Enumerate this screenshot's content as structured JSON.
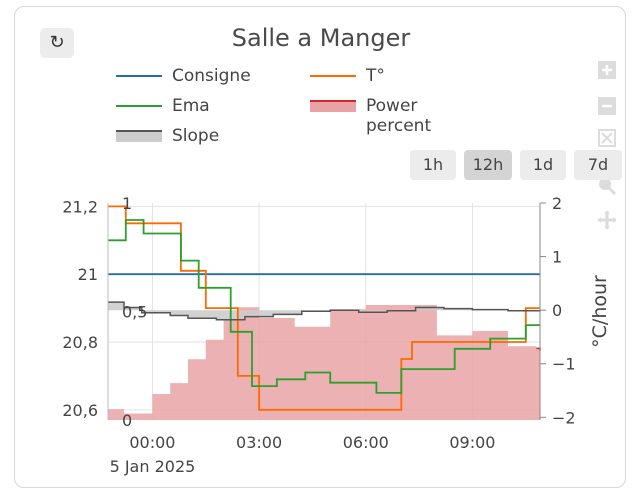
{
  "card": {
    "title": "Salle a Manger",
    "refresh_icon": "refresh-icon",
    "refresh_glyph": "↻"
  },
  "legend": {
    "consigne": "Consigne",
    "t": "T°",
    "ema": "Ema",
    "power": "Power percent",
    "slope": "Slope"
  },
  "range_buttons": [
    "1h",
    "12h",
    "1d",
    "7d"
  ],
  "active_range": "12h",
  "modebar_icons": [
    "zoom-in-icon",
    "zoom-out-icon",
    "autoscale-icon",
    "zoom-icon",
    "pan-icon"
  ],
  "colors": {
    "consigne": "#1f6fa8",
    "t": "#ff6a00",
    "ema": "#2ca02c",
    "power": "#e8a3a6",
    "power_line": "#d62728",
    "slope": "#555555",
    "slope_fill": "#cccccc"
  },
  "chart_data": {
    "type": "line",
    "x_tick_labels": [
      "00:00",
      "03:00",
      "06:00",
      "09:00"
    ],
    "x_date_label": "5 Jan 2025",
    "xlim_hours": [
      -1.25,
      10.9
    ],
    "y_left": {
      "ticks": [
        "21,2",
        "21",
        "20,8",
        "20,6"
      ],
      "ylim": [
        20.57,
        21.21
      ]
    },
    "y_power": {
      "ticks": [
        "1",
        "0,5",
        "0"
      ],
      "ylim": [
        0,
        1
      ]
    },
    "y_right": {
      "label": "°C/hour",
      "ticks": [
        "2",
        "1",
        "0",
        "−1",
        "−2"
      ],
      "ylim": [
        -2.05,
        2.0
      ]
    },
    "series": [
      {
        "name": "Consigne",
        "axis": "left",
        "shape": "step",
        "x": [
          -1.25,
          10.9
        ],
        "y": [
          21.0,
          21.0
        ]
      },
      {
        "name": "T°",
        "axis": "left",
        "shape": "step",
        "x": [
          -1.25,
          -0.75,
          0.8,
          1.5,
          2.4,
          3.0,
          5.5,
          7.0,
          7.3,
          10.5,
          10.9
        ],
        "y": [
          21.2,
          21.15,
          21.01,
          20.9,
          20.7,
          20.6,
          20.6,
          20.75,
          20.8,
          20.9,
          20.9
        ]
      },
      {
        "name": "Ema",
        "axis": "left",
        "shape": "step",
        "x": [
          -1.25,
          -0.75,
          -0.25,
          0.8,
          1.3,
          2.2,
          2.8,
          3.5,
          4.3,
          5.0,
          6.3,
          7.0,
          8.5,
          9.5,
          10.5,
          10.9
        ],
        "y": [
          21.1,
          21.16,
          21.12,
          21.04,
          20.96,
          20.83,
          20.67,
          20.69,
          20.71,
          20.68,
          20.65,
          20.72,
          20.78,
          20.81,
          20.85,
          20.85
        ]
      },
      {
        "name": "Power percent",
        "axis": "power",
        "shape": "step",
        "fill": true,
        "x": [
          -1.25,
          -0.8,
          0.0,
          0.5,
          1.0,
          1.5,
          2.0,
          2.4,
          3.0,
          4.0,
          5.0,
          6.0,
          7.0,
          8.0,
          9.0,
          10.0,
          10.8,
          10.9
        ],
        "y": [
          0.05,
          0.03,
          0.12,
          0.17,
          0.28,
          0.37,
          0.46,
          0.52,
          0.47,
          0.43,
          0.51,
          0.53,
          0.53,
          0.39,
          0.41,
          0.34,
          0.33,
          0.32
        ]
      },
      {
        "name": "Slope",
        "axis": "right",
        "shape": "step",
        "fill": true,
        "x": [
          -1.25,
          -0.8,
          -0.3,
          0.5,
          1.0,
          1.8,
          2.6,
          3.4,
          4.2,
          5.0,
          5.8,
          6.6,
          7.4,
          8.2,
          9.0,
          10.0,
          10.9
        ],
        "y": [
          0.15,
          0.05,
          -0.05,
          -0.1,
          -0.15,
          -0.18,
          -0.12,
          -0.08,
          -0.02,
          0.0,
          -0.04,
          -0.01,
          0.05,
          0.03,
          0.01,
          -0.01,
          0.0
        ]
      }
    ]
  }
}
